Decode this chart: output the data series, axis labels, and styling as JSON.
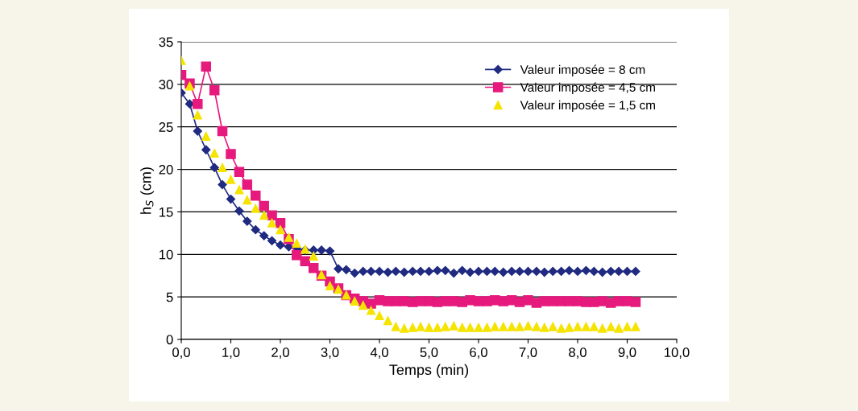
{
  "chart_data": {
    "type": "line",
    "xlabel": "Temps (min)",
    "ylabel": "h$_{S}$ (cm)",
    "x": [
      0,
      0.17,
      0.33,
      0.5,
      0.67,
      0.83,
      1,
      1.17,
      1.33,
      1.5,
      1.67,
      1.83,
      2,
      2.17,
      2.33,
      2.5,
      2.67,
      2.83,
      3,
      3.17,
      3.33,
      3.5,
      3.67,
      3.83,
      4,
      4.17,
      4.33,
      4.5,
      4.67,
      4.83,
      5,
      5.17,
      5.33,
      5.5,
      5.67,
      5.83,
      6,
      6.17,
      6.33,
      6.5,
      6.67,
      6.83,
      7,
      7.17,
      7.33,
      7.5,
      7.67,
      7.83,
      8,
      8.17,
      8.33,
      8.5,
      8.67,
      8.83,
      9,
      9.17
    ],
    "series": [
      {
        "name": "Valeur imposée = 8 cm",
        "color": "#1f2a80",
        "marker": "diamond",
        "values": [
          29.0,
          27.7,
          24.5,
          22.3,
          20.2,
          18.2,
          16.5,
          15.1,
          13.9,
          12.9,
          12.2,
          11.6,
          11.1,
          10.9,
          10.7,
          10.5,
          10.5,
          10.5,
          10.4,
          8.3,
          8.2,
          7.8,
          8.0,
          8.0,
          8.0,
          7.9,
          8.0,
          7.9,
          8.0,
          8.0,
          8.0,
          8.1,
          8.1,
          7.8,
          8.1,
          7.9,
          8.0,
          8.0,
          8.0,
          7.9,
          8.0,
          8.0,
          8.0,
          8.0,
          7.9,
          8.0,
          8.0,
          8.1,
          8.0,
          8.1,
          8.0,
          7.9,
          8.0,
          8.0,
          8.0,
          8.0
        ]
      },
      {
        "name": "Valeur imposée = 4,5 cm",
        "color": "#e6197d",
        "marker": "square",
        "values": [
          31.1,
          30.1,
          27.7,
          32.1,
          29.3,
          24.5,
          21.8,
          19.7,
          18.2,
          16.9,
          15.7,
          14.6,
          13.7,
          11.8,
          9.9,
          9.2,
          8.4,
          7.5,
          6.8,
          6.0,
          5.2,
          4.8,
          4.5,
          4.2,
          4.6,
          4.5,
          4.5,
          4.5,
          4.4,
          4.5,
          4.5,
          4.4,
          4.5,
          4.5,
          4.4,
          4.6,
          4.5,
          4.5,
          4.6,
          4.5,
          4.6,
          4.4,
          4.6,
          4.3,
          4.5,
          4.5,
          4.5,
          4.5,
          4.5,
          4.4,
          4.4,
          4.5,
          4.3,
          4.5,
          4.5,
          4.4
        ]
      },
      {
        "name": "Valeur imposée = 1,5 cm",
        "color": "#f5e400",
        "marker": "triangle",
        "type": "scatter",
        "values": [
          32.8,
          29.8,
          26.4,
          23.9,
          21.9,
          20.2,
          18.8,
          17.6,
          16.4,
          15.4,
          14.6,
          13.7,
          12.9,
          12.0,
          11.3,
          10.6,
          9.8,
          7.6,
          6.3,
          5.9,
          5.2,
          4.5,
          4.0,
          3.4,
          2.8,
          2.2,
          1.5,
          1.3,
          1.4,
          1.5,
          1.4,
          1.4,
          1.5,
          1.6,
          1.4,
          1.4,
          1.4,
          1.4,
          1.5,
          1.5,
          1.5,
          1.5,
          1.6,
          1.5,
          1.4,
          1.5,
          1.3,
          1.4,
          1.5,
          1.5,
          1.5,
          1.3,
          1.5,
          1.3,
          1.5,
          1.5
        ]
      }
    ],
    "xlim": [
      0,
      10
    ],
    "xticks": [
      {
        "value": 0,
        "label": "0,0"
      },
      {
        "value": 1,
        "label": "1,0"
      },
      {
        "value": 2,
        "label": "2,0"
      },
      {
        "value": 3,
        "label": "3,0"
      },
      {
        "value": 4,
        "label": "4,0"
      },
      {
        "value": 5,
        "label": "5,0"
      },
      {
        "value": 6,
        "label": "6,0"
      },
      {
        "value": 7,
        "label": "7,0"
      },
      {
        "value": 8,
        "label": "8,0"
      },
      {
        "value": 9,
        "label": "9,0"
      },
      {
        "value": 10,
        "label": "10,0"
      }
    ],
    "ylim": [
      0,
      35
    ],
    "yticks": [
      0,
      5,
      10,
      15,
      20,
      25,
      30,
      35
    ],
    "grid": "y",
    "legend": "top right",
    "line_style": "solid"
  }
}
